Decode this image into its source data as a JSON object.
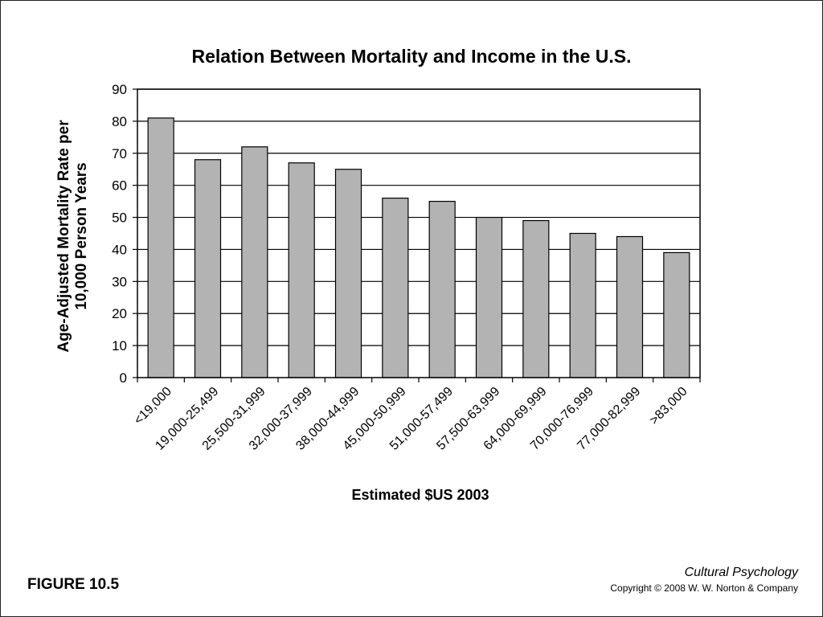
{
  "chart_data": {
    "type": "bar",
    "title": "Relation Between Mortality and Income in the U.S.",
    "xlabel": "Estimated $US 2003",
    "ylabel_lines": [
      "Age-Adjusted Mortality Rate per",
      "10,000 Person Years"
    ],
    "ylim": [
      0,
      90
    ],
    "yticks": [
      0,
      10,
      20,
      30,
      40,
      50,
      60,
      70,
      80,
      90
    ],
    "grid": true,
    "categories": [
      "<19,000",
      "19,000-25,499",
      "25,500-31,999",
      "32,000-37,999",
      "38,000-44,999",
      "45,000-50,999",
      "51,000-57,499",
      "57,500-63,999",
      "64,000-69,999",
      "70,000-76,999",
      "77,000-82,999",
      ">83,000"
    ],
    "values": [
      81,
      68,
      72,
      67,
      65,
      56,
      55,
      50,
      49,
      45,
      44,
      39
    ],
    "bar_color": "#b3b3b3",
    "bar_edge_color": "#000000"
  },
  "footer": {
    "figure_label": "FIGURE 10.5",
    "book_title": "Cultural Psychology",
    "copyright": "Copyright © 2008 W. W. Norton & Company"
  }
}
